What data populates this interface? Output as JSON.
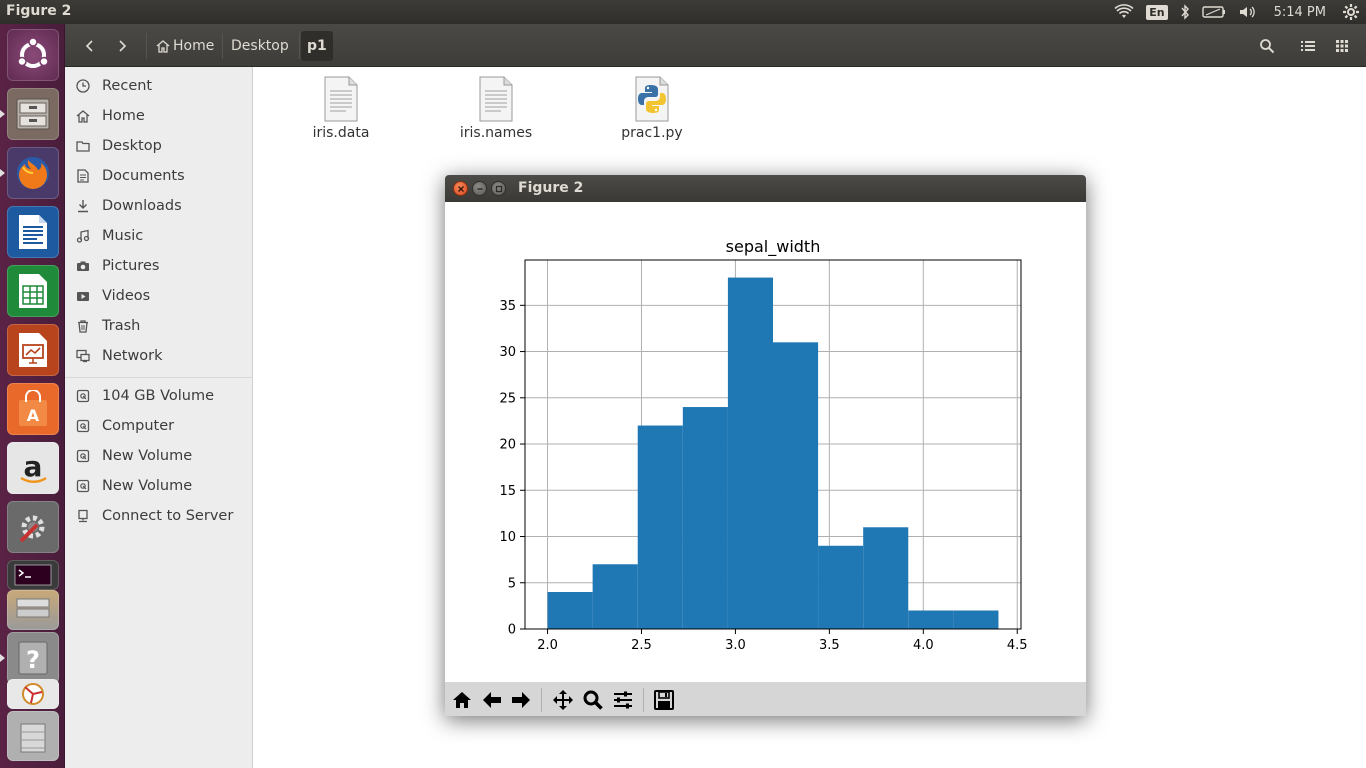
{
  "top_panel": {
    "window_title": "Figure 2",
    "keyboard_layout": "En",
    "clock": "5:14 PM"
  },
  "launcher": {
    "apps": [
      "ubuntu-dash",
      "files",
      "firefox",
      "libreoffice-writer",
      "libreoffice-calc",
      "libreoffice-impress",
      "ubuntu-software",
      "amazon",
      "system-settings",
      "terminal",
      "python",
      "help",
      "figure",
      "trash"
    ]
  },
  "toolbar": {
    "breadcrumbs": [
      "Home",
      "Desktop",
      "p1"
    ]
  },
  "sidebar": {
    "places": [
      {
        "label": "Recent",
        "icon": "clock-icon"
      },
      {
        "label": "Home",
        "icon": "home-icon"
      },
      {
        "label": "Desktop",
        "icon": "folder-icon"
      },
      {
        "label": "Documents",
        "icon": "document-icon"
      },
      {
        "label": "Downloads",
        "icon": "download-icon"
      },
      {
        "label": "Music",
        "icon": "music-icon"
      },
      {
        "label": "Pictures",
        "icon": "camera-icon"
      },
      {
        "label": "Videos",
        "icon": "video-icon"
      },
      {
        "label": "Trash",
        "icon": "trash-icon"
      },
      {
        "label": "Network",
        "icon": "network-icon"
      }
    ],
    "devices": [
      {
        "label": "104 GB Volume",
        "icon": "drive-icon"
      },
      {
        "label": "Computer",
        "icon": "drive-icon"
      },
      {
        "label": "New Volume",
        "icon": "drive-icon"
      },
      {
        "label": "New Volume",
        "icon": "drive-icon"
      },
      {
        "label": "Connect to Server",
        "icon": "server-icon"
      }
    ]
  },
  "files": [
    {
      "name": "iris.data",
      "icon": "text-file-icon"
    },
    {
      "name": "iris.names",
      "icon": "text-file-icon"
    },
    {
      "name": "prac1.py",
      "icon": "python-file-icon"
    }
  ],
  "figure_window": {
    "title": "Figure 2",
    "toolbar_buttons": [
      "home-icon",
      "back-arrow-icon",
      "forward-arrow-icon",
      "pan-icon",
      "zoom-icon",
      "configure-icon",
      "save-icon"
    ]
  },
  "chart_data": {
    "type": "bar",
    "title": "sepal_width",
    "xlabel": "",
    "ylabel": "",
    "bin_edges": [
      2.0,
      2.24,
      2.48,
      2.72,
      2.96,
      3.2,
      3.44,
      3.68,
      3.92,
      4.16,
      4.4
    ],
    "values": [
      4,
      7,
      22,
      24,
      38,
      31,
      9,
      11,
      2,
      2
    ],
    "xlim": [
      1.88,
      4.52
    ],
    "ylim": [
      0,
      39.9
    ],
    "xticks": [
      "2.0",
      "2.5",
      "3.0",
      "3.5",
      "4.0",
      "4.5"
    ],
    "yticks": [
      "0",
      "5",
      "10",
      "15",
      "20",
      "25",
      "30",
      "35"
    ],
    "grid": true,
    "bar_color": "#1f77b4"
  }
}
